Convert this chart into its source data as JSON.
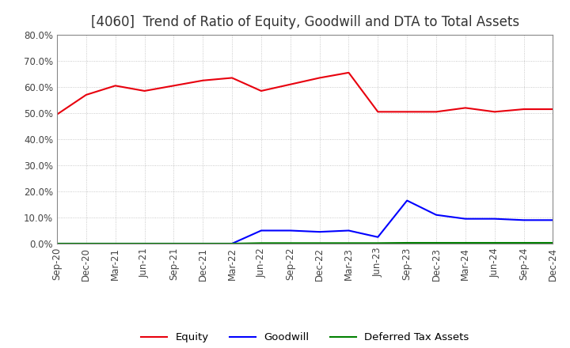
{
  "title": "[4060]  Trend of Ratio of Equity, Goodwill and DTA to Total Assets",
  "x_labels": [
    "Sep-20",
    "Dec-20",
    "Mar-21",
    "Jun-21",
    "Sep-21",
    "Dec-21",
    "Mar-22",
    "Jun-22",
    "Sep-22",
    "Dec-22",
    "Mar-23",
    "Jun-23",
    "Sep-23",
    "Dec-23",
    "Mar-24",
    "Jun-24",
    "Sep-24",
    "Dec-24"
  ],
  "equity": [
    49.5,
    57.0,
    60.5,
    58.5,
    60.5,
    62.5,
    63.5,
    58.5,
    61.0,
    63.5,
    65.5,
    50.5,
    50.5,
    50.5,
    52.0,
    50.5,
    51.5,
    51.5
  ],
  "goodwill": [
    0.0,
    0.0,
    0.0,
    0.0,
    0.0,
    0.0,
    0.0,
    5.0,
    5.0,
    4.5,
    5.0,
    2.5,
    16.5,
    11.0,
    9.5,
    9.5,
    9.0,
    9.0
  ],
  "dta": [
    0.0,
    0.0,
    0.0,
    0.0,
    0.0,
    0.0,
    0.0,
    0.2,
    0.2,
    0.2,
    0.2,
    0.2,
    0.3,
    0.3,
    0.3,
    0.3,
    0.3,
    0.3
  ],
  "equity_color": "#e8000d",
  "goodwill_color": "#0000ff",
  "dta_color": "#008000",
  "ylim": [
    0,
    80
  ],
  "yticks": [
    0,
    10,
    20,
    30,
    40,
    50,
    60,
    70,
    80
  ],
  "grid_color": "#bbbbbb",
  "background_color": "#ffffff",
  "title_fontsize": 12,
  "title_color": "#333333"
}
